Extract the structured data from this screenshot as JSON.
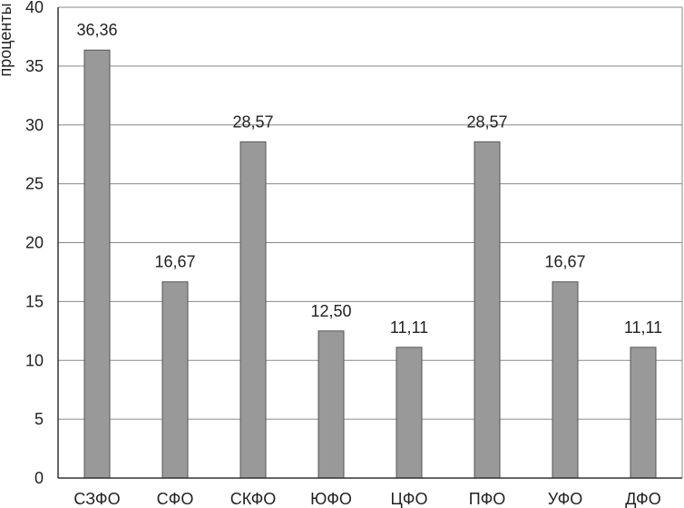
{
  "chart_data": {
    "type": "bar",
    "title": "",
    "xlabel": "",
    "ylabel": "проценты",
    "ylim": [
      0,
      40
    ],
    "yticks": [
      "0",
      "5",
      "10",
      "15",
      "20",
      "25",
      "30",
      "35",
      "40"
    ],
    "grid": true,
    "categories": [
      "СЗФО",
      "СФО",
      "СКФО",
      "ЮФО",
      "ЦФО",
      "ПФО",
      "УФО",
      "ДФО"
    ],
    "values": [
      36.36,
      16.67,
      28.57,
      12.5,
      11.11,
      28.57,
      16.67,
      11.11
    ],
    "value_labels": [
      "36,36",
      "16,67",
      "28,57",
      "12,50",
      "11,11",
      "28,57",
      "16,67",
      "11,11"
    ],
    "colors": {
      "bar": "#999999",
      "bar_edge": "#555555",
      "grid": "#888888",
      "axis": "#333333"
    }
  }
}
